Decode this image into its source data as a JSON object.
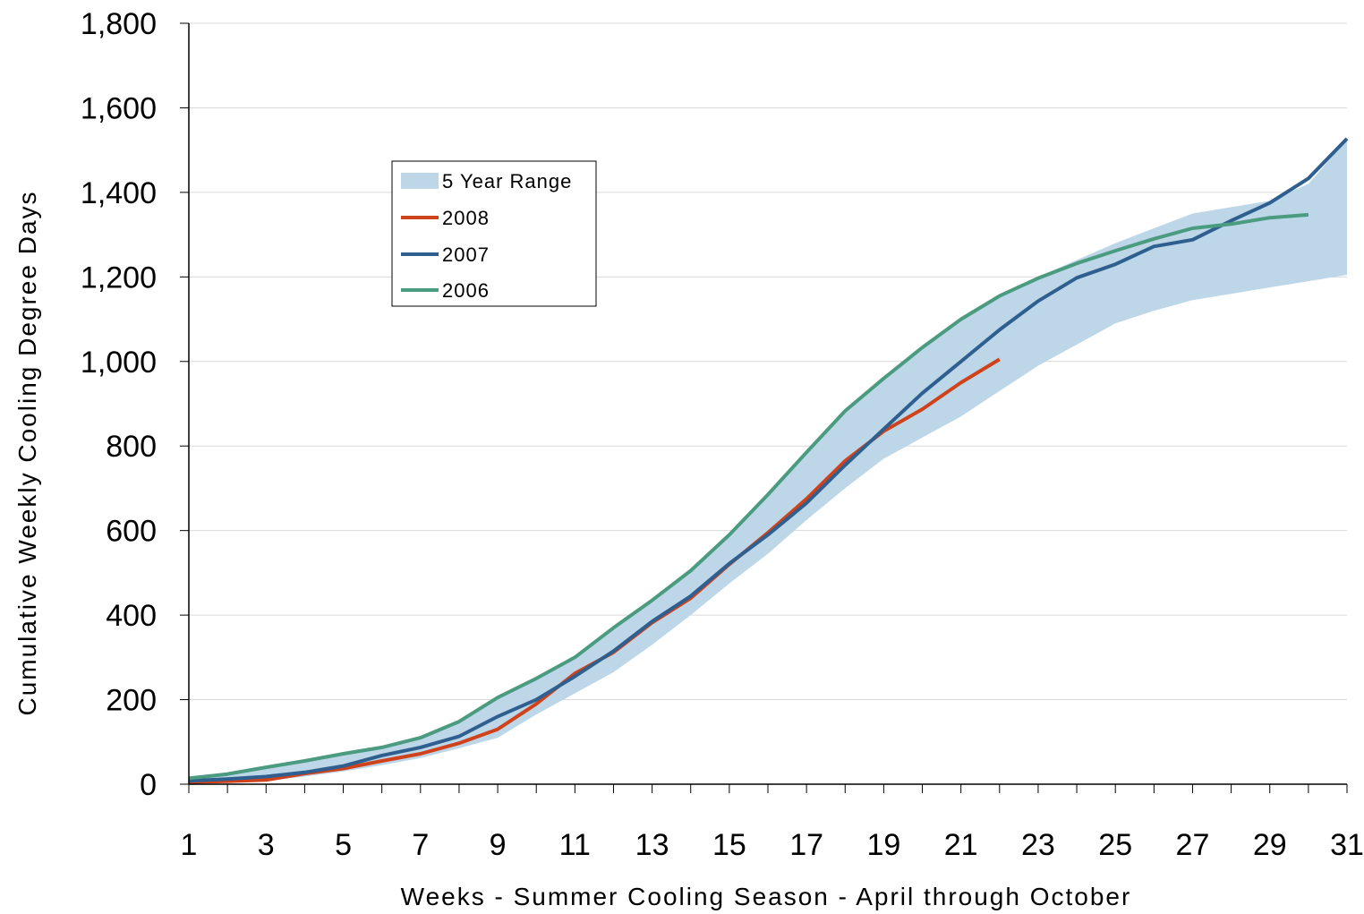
{
  "chart_data": {
    "type": "line",
    "title": "",
    "xlabel": "Weeks - Summer Cooling Season - April through October",
    "ylabel": "Cumulative Weekly Cooling Degree Days",
    "xlim": [
      1,
      31
    ],
    "ylim": [
      0,
      1800
    ],
    "x_ticks": [
      1,
      3,
      5,
      7,
      9,
      11,
      13,
      15,
      17,
      19,
      21,
      23,
      25,
      27,
      29,
      31
    ],
    "x_tick_labels": [
      "1",
      "3",
      "5",
      "7",
      "9",
      "11",
      "13",
      "15",
      "17",
      "19",
      "21",
      "23",
      "25",
      "27",
      "29",
      "31"
    ],
    "y_ticks": [
      0,
      200,
      400,
      600,
      800,
      1000,
      1200,
      1400,
      1600,
      1800
    ],
    "y_tick_labels": [
      "0",
      "200",
      "400",
      "600",
      "800",
      "1,000",
      "1,200",
      "1,400",
      "1,600",
      "1,800"
    ],
    "grid": "horizontal",
    "legend_position": "upper-left inside plot",
    "range_band": {
      "name": "5 Year Range",
      "color": "#bdd7e9",
      "x": [
        1,
        2,
        3,
        4,
        5,
        6,
        7,
        8,
        9,
        10,
        11,
        12,
        13,
        14,
        15,
        16,
        17,
        18,
        19,
        20,
        21,
        22,
        23,
        24,
        25,
        26,
        27,
        28,
        29,
        30,
        31
      ],
      "upper": [
        14,
        24,
        40,
        55,
        72,
        88,
        110,
        148,
        205,
        250,
        300,
        370,
        435,
        505,
        590,
        685,
        785,
        880,
        960,
        1035,
        1100,
        1155,
        1200,
        1240,
        1280,
        1315,
        1350,
        1365,
        1380,
        1420,
        1525
      ],
      "lower": [
        3,
        5,
        8,
        18,
        30,
        45,
        62,
        85,
        110,
        165,
        215,
        265,
        330,
        400,
        475,
        545,
        625,
        700,
        770,
        820,
        870,
        930,
        990,
        1040,
        1090,
        1120,
        1145,
        1160,
        1175,
        1190,
        1205
      ]
    },
    "series": [
      {
        "name": "2008",
        "color": "#d0421b",
        "x": [
          1,
          2,
          3,
          4,
          5,
          6,
          7,
          8,
          9,
          10,
          11,
          12,
          13,
          14,
          15,
          16,
          17,
          18,
          19,
          20,
          21,
          22
        ],
        "y": [
          5,
          7,
          10,
          25,
          37,
          55,
          72,
          97,
          130,
          190,
          262,
          312,
          382,
          440,
          520,
          595,
          675,
          765,
          835,
          887,
          950,
          1005
        ]
      },
      {
        "name": "2007",
        "color": "#2e5f8f",
        "x": [
          1,
          2,
          3,
          4,
          5,
          6,
          7,
          8,
          9,
          10,
          11,
          12,
          13,
          14,
          15,
          16,
          17,
          18,
          19,
          20,
          21,
          22,
          23,
          24,
          25,
          26,
          27,
          28,
          29,
          30,
          31
        ],
        "y": [
          8,
          12,
          18,
          28,
          43,
          68,
          87,
          113,
          160,
          200,
          255,
          315,
          385,
          445,
          522,
          590,
          665,
          755,
          840,
          925,
          1000,
          1075,
          1143,
          1198,
          1230,
          1272,
          1288,
          1333,
          1375,
          1433,
          1527
        ]
      },
      {
        "name": "2006",
        "color": "#4a9b7f",
        "x": [
          1,
          2,
          3,
          4,
          5,
          6,
          7,
          8,
          9,
          10,
          11,
          12,
          13,
          14,
          15,
          16,
          17,
          18,
          19,
          20,
          21,
          22,
          23,
          24,
          25,
          26,
          27,
          28,
          29,
          30
        ],
        "y": [
          14,
          24,
          40,
          55,
          72,
          87,
          110,
          148,
          205,
          250,
          300,
          370,
          435,
          505,
          590,
          685,
          785,
          883,
          960,
          1033,
          1100,
          1155,
          1197,
          1232,
          1262,
          1290,
          1315,
          1325,
          1340,
          1347
        ]
      }
    ]
  }
}
